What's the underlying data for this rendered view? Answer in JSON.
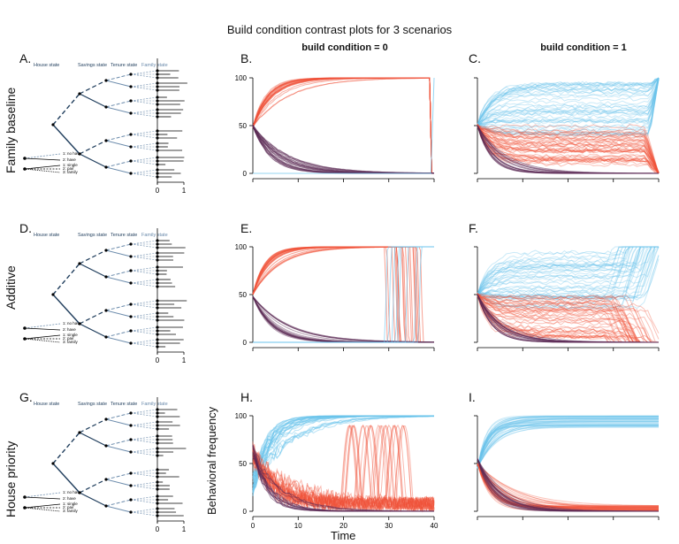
{
  "title": "Build condition contrast plots for 3 scenarios",
  "column_headers": [
    "build condition = 0",
    "build condition = 1"
  ],
  "row_labels": [
    "Family baseline",
    "Additive",
    "House priority"
  ],
  "tree_headers": [
    "House state",
    "Savings state",
    "Tenure state",
    "Family state"
  ],
  "tree_leaf_labels": [
    "1: no have",
    "2: have",
    "1: single",
    "2: pair",
    "3: family"
  ],
  "tree_axis_ticks": [
    "0",
    "1"
  ],
  "panel_letters": [
    "A.",
    "B.",
    "C.",
    "D.",
    "E.",
    "F.",
    "G.",
    "H.",
    "I."
  ],
  "colors": {
    "red": "#f0533a",
    "blue": "#69c3ec",
    "purple": "#5b2a55",
    "tree": "#1f3d5c",
    "tree_light": "#6a8aab"
  },
  "chart_data": {
    "type": "line",
    "x_label": "Time",
    "y_label": "Behavioral frequency",
    "x_ticks": [
      "0",
      "10",
      "20",
      "30",
      "40"
    ],
    "y_ticks": [
      "0",
      "50",
      "100"
    ],
    "xlim": [
      0,
      40
    ],
    "ylim": [
      0,
      100
    ],
    "panels": [
      {
        "letter": "B.",
        "scenario": "Family baseline",
        "condition": 0,
        "pattern": "red rises from 50 to 100 then drops near t=39; purple decays from 50 to 0; blue stays at 0 then jumps near t=40"
      },
      {
        "letter": "C.",
        "scenario": "Family baseline",
        "condition": 1,
        "pattern": "blue spread 40-95, red spread 5-50, purple decays from 50 to 0"
      },
      {
        "letter": "E.",
        "scenario": "Additive",
        "condition": 0,
        "pattern": "red rises to 100, purple decays to 0, switches to blue between t=29 and t=37"
      },
      {
        "letter": "F.",
        "scenario": "Additive",
        "condition": 1,
        "pattern": "blue spread 35-100, red spread 0-50, late switches"
      },
      {
        "letter": "H.",
        "scenario": "House priority",
        "condition": 0,
        "pattern": "blue rises to 100, red oscillates between t=18 and t=35, purple decays"
      },
      {
        "letter": "I.",
        "scenario": "House priority",
        "condition": 1,
        "pattern": "blue rises to 90-100, red decays to 0-5, purple decays"
      }
    ]
  }
}
